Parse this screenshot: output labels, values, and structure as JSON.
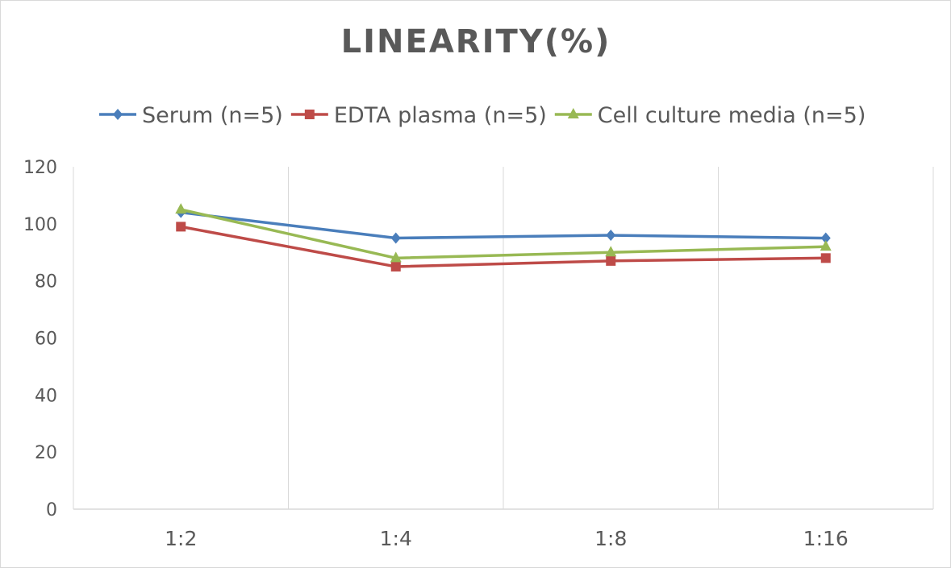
{
  "chart_data": {
    "type": "line",
    "title": "LINEARITY(%)",
    "xlabel": "",
    "ylabel": "",
    "categories": [
      "1:2",
      "1:4",
      "1:8",
      "1:16"
    ],
    "ylim": [
      0,
      120
    ],
    "yticks": [
      0,
      20,
      40,
      60,
      80,
      100,
      120
    ],
    "grid": "vertical",
    "legend": "top",
    "series": [
      {
        "name": "Serum (n=5)",
        "values": [
          104,
          95,
          96,
          95
        ],
        "color": "#4a7ebb",
        "marker": "diamond"
      },
      {
        "name": "EDTA plasma (n=5)",
        "values": [
          99,
          85,
          87,
          88
        ],
        "color": "#be4b48",
        "marker": "square"
      },
      {
        "name": "Cell culture media (n=5)",
        "values": [
          105,
          88,
          90,
          92
        ],
        "color": "#98b954",
        "marker": "triangle"
      }
    ]
  }
}
